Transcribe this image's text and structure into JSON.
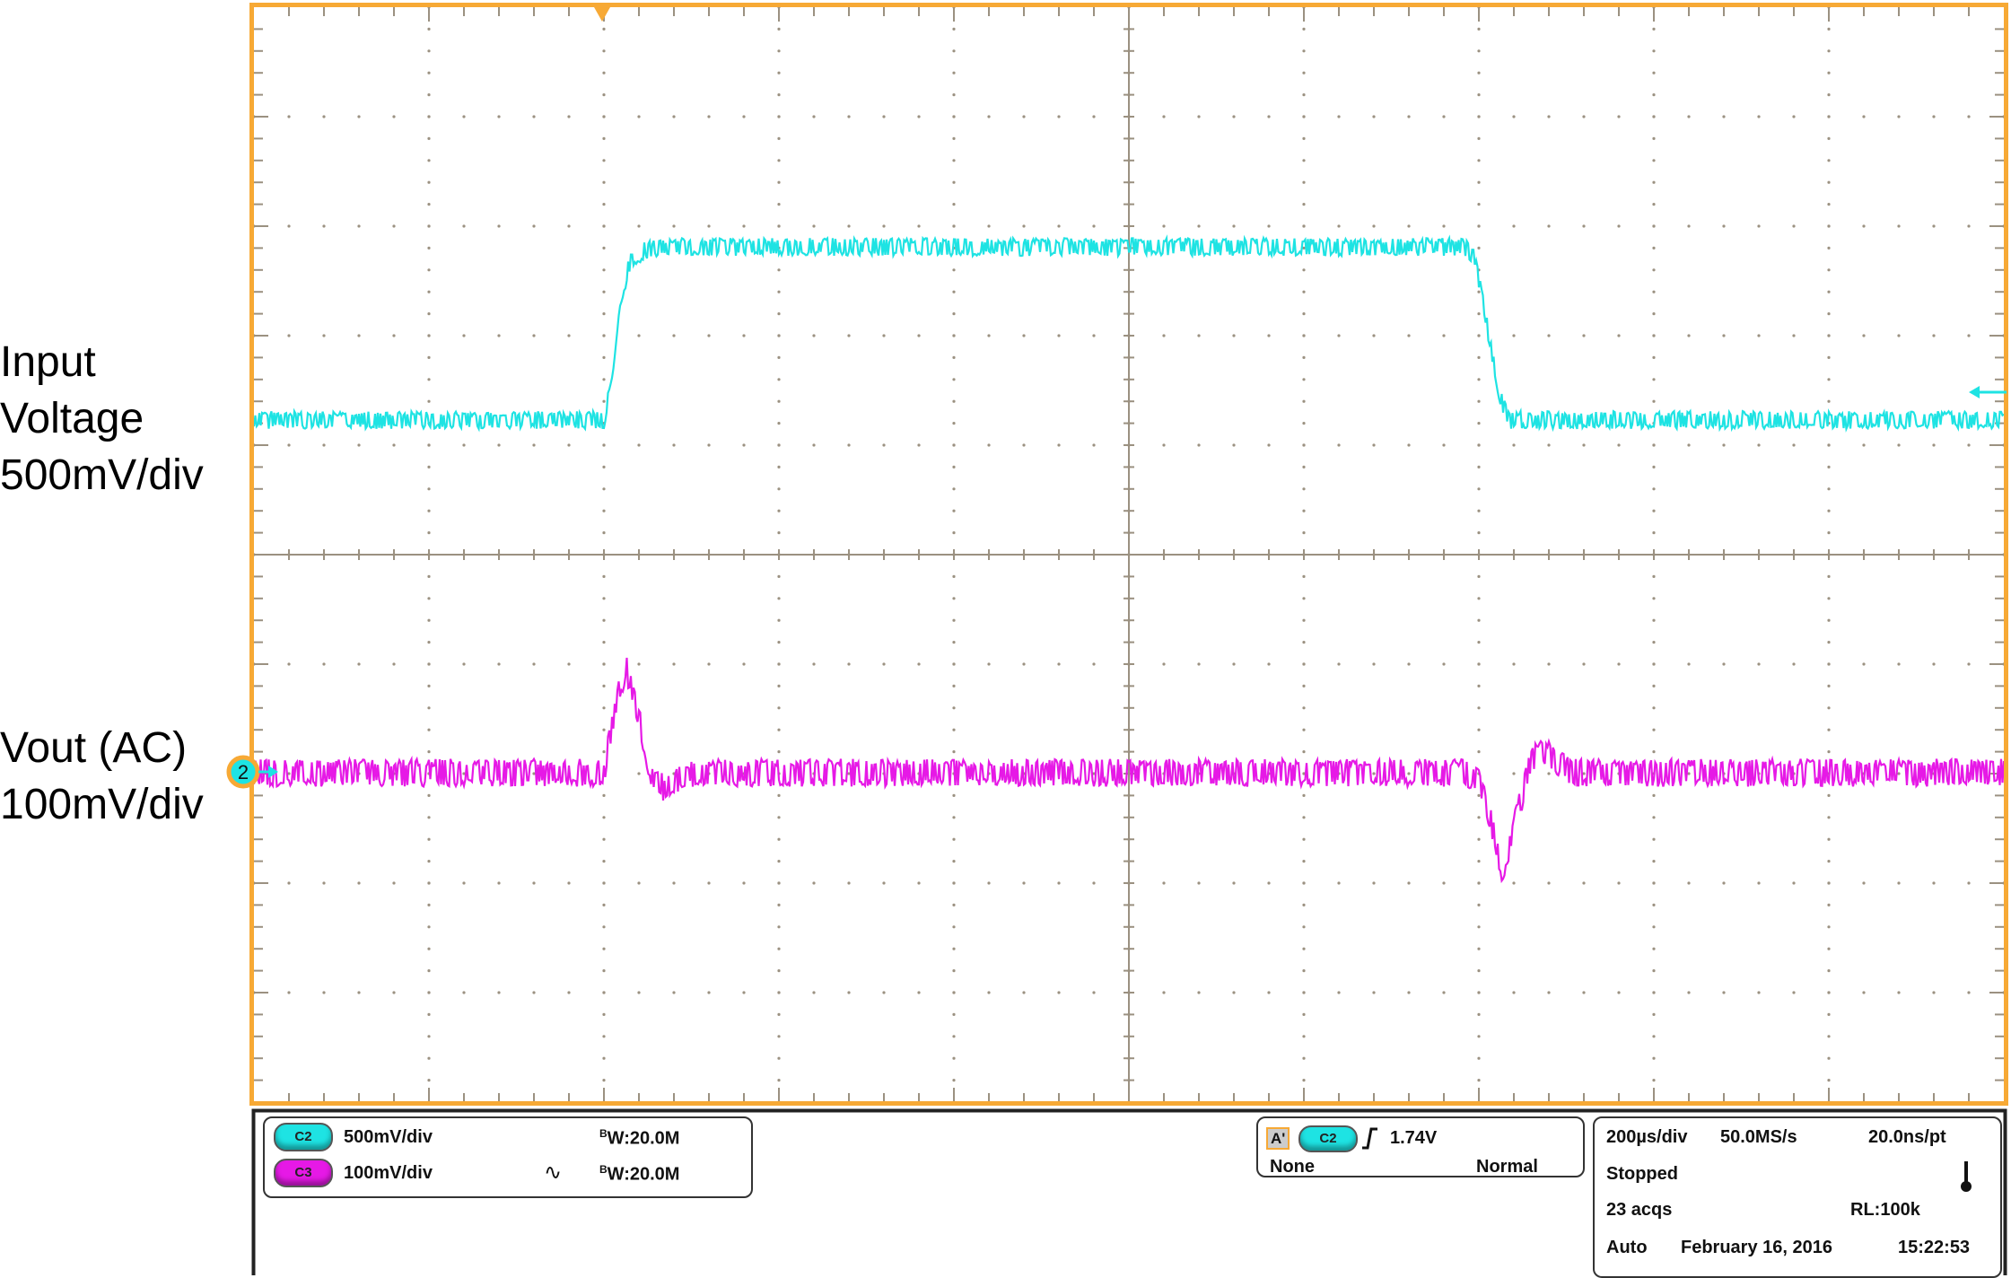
{
  "annotations": {
    "input_line1": "Input",
    "input_line2": "Voltage",
    "input_scale": "500mV/div",
    "vout_line1": "Vout (AC)",
    "vout_scale": "100mV/div"
  },
  "colors": {
    "frame": "#f7a935",
    "grid": "#9b9181",
    "c2": "#1ee3e3",
    "c3": "#e619e6"
  },
  "channels": [
    {
      "badge": "C2",
      "scale": "500mV/div",
      "coupling_icon": "",
      "bandwidth": "W:20.0M",
      "bw_prefix": "B"
    },
    {
      "badge": "C3",
      "scale": "100mV/div",
      "coupling_icon": "∿",
      "bandwidth": "W:20.0M",
      "bw_prefix": "B"
    }
  ],
  "trigger": {
    "label": "A'",
    "source": "C2",
    "slope_icon": "rising-edge-icon",
    "level": "1.74V",
    "aux": "None",
    "mode": "Normal"
  },
  "acquisition": {
    "timebase": "200µs/div",
    "sample_rate": "50.0MS/s",
    "resolution": "20.0ns/pt",
    "state": "Stopped",
    "acqs": "23 acqs",
    "record_length": "RL:100k",
    "auto": "Auto",
    "date": "February 16, 2016",
    "time": "15:22:53"
  },
  "markers": {
    "ground_marker": "2"
  },
  "chart_data": {
    "type": "line",
    "title": "",
    "xlabel": "",
    "ylabel": "",
    "x_unit": "µs",
    "xlim": [
      -400,
      1600
    ],
    "x_per_div": 200,
    "horizontal_divisions": 10,
    "vertical_divisions": 10,
    "grid": true,
    "trigger_time": 0,
    "series": [
      {
        "channel": "C2",
        "scale_mV_per_div": 500,
        "unit": "mV (relative to low level)",
        "x": [
          -400,
          0,
          10,
          20,
          30,
          50,
          80,
          985,
          995,
          1010,
          1025,
          1035,
          1600
        ],
        "y": [
          0,
          0,
          180,
          560,
          730,
          780,
          790,
          790,
          740,
          420,
          90,
          0,
          0
        ]
      },
      {
        "channel": "C3",
        "coupling": "AC",
        "scale_mV_per_div": 100,
        "unit": "mV",
        "x": [
          -400,
          0,
          12,
          25,
          40,
          55,
          68,
          90,
          105,
          985,
          1000,
          1015,
          1027,
          1045,
          1060,
          1074,
          1100,
          1115,
          1600
        ],
        "y": [
          0,
          0,
          55,
          98,
          50,
          -5,
          -14,
          -3,
          0,
          0,
          -6,
          -50,
          -90,
          -35,
          12,
          20,
          4,
          0,
          0
        ]
      }
    ]
  }
}
